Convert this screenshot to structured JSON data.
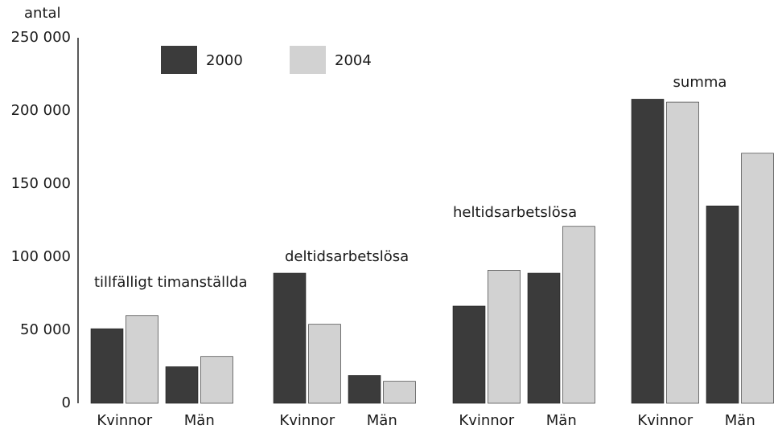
{
  "chart_data": {
    "type": "bar",
    "y_label": "antal",
    "groups": [
      "tillfälligt timanställda",
      "deltidsarbetslösa",
      "heltidsarbetslösa",
      "summa"
    ],
    "categories": [
      "Kvinnor",
      "Män",
      "Kvinnor",
      "Män",
      "Kvinnor",
      "Män",
      "Kvinnor",
      "Män"
    ],
    "series": [
      {
        "name": "2000",
        "color": "#3b3b3b",
        "values": [
          51000,
          25000,
          89000,
          19000,
          66500,
          89000,
          208000,
          135000
        ]
      },
      {
        "name": "2004",
        "color": "#d2d2d2",
        "values": [
          60000,
          32000,
          54000,
          15000,
          91000,
          121000,
          206000,
          171000
        ]
      }
    ],
    "ylim": [
      0,
      250000
    ],
    "yticks": [
      0,
      {
        "value": 50000,
        "label": "50 000"
      },
      {
        "value": 100000,
        "label": "100 000"
      },
      {
        "value": 150000,
        "label": "150 000"
      },
      {
        "value": 200000,
        "label": "200 000"
      },
      {
        "value": 250000,
        "label": "250 000"
      }
    ],
    "grid": false
  }
}
